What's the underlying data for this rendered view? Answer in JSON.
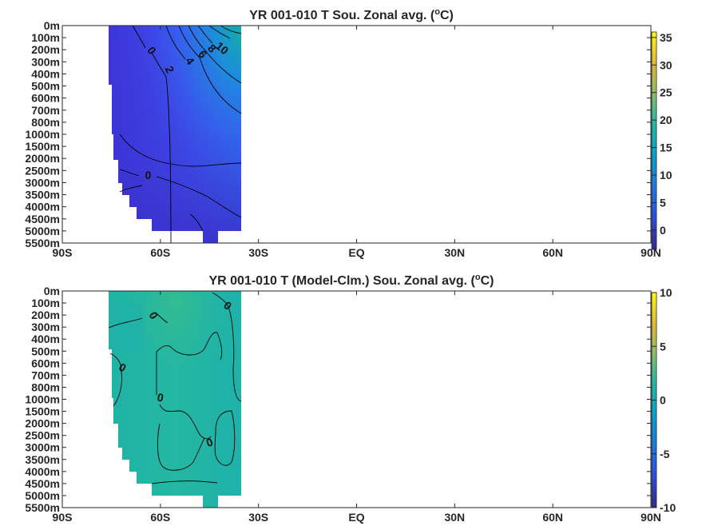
{
  "chart_data": [
    {
      "type": "heatmap",
      "title": "YR 001-010 T Sou. Zonal avg. (",
      "title_unit_sup": "o",
      "title_unit_end": "C)",
      "x_ticks": [
        "90S",
        "60S",
        "30S",
        "EQ",
        "30N",
        "60N",
        "90N"
      ],
      "y_ticks": [
        "0m",
        "100m",
        "200m",
        "300m",
        "400m",
        "500m",
        "600m",
        "700m",
        "800m",
        "1000m",
        "1500m",
        "2000m",
        "2500m",
        "3000m",
        "3500m",
        "4000m",
        "4500m",
        "5000m",
        "5500m"
      ],
      "colorbar_ticks": [
        "35",
        "30",
        "25",
        "20",
        "15",
        "10",
        "5",
        "0"
      ],
      "colorbar_range": [
        -3.5,
        36
      ],
      "colormap": "parula",
      "data_extent_lat": [
        -77,
        -34
      ],
      "contour_labels": [
        "0",
        "2",
        "4",
        "6",
        "8",
        "10",
        "0"
      ],
      "grid": false
    },
    {
      "type": "heatmap",
      "title": "YR 001-010 T (Model-Clm.) Sou. Zonal avg. (",
      "title_unit_sup": "o",
      "title_unit_end": "C)",
      "x_ticks": [
        "90S",
        "60S",
        "30S",
        "EQ",
        "30N",
        "60N",
        "90N"
      ],
      "y_ticks": [
        "0m",
        "100m",
        "200m",
        "300m",
        "400m",
        "500m",
        "600m",
        "700m",
        "800m",
        "1000m",
        "1500m",
        "2000m",
        "2500m",
        "3000m",
        "3500m",
        "4000m",
        "4500m",
        "5000m",
        "5500m"
      ],
      "colorbar_ticks": [
        "10",
        "5",
        "0",
        "-5",
        "-10"
      ],
      "colorbar_range": [
        -10,
        10
      ],
      "colormap": "parula",
      "data_extent_lat": [
        -77,
        -34
      ],
      "contour_labels": [
        "0",
        "0",
        "0",
        "0",
        "0"
      ],
      "grid": false
    }
  ]
}
